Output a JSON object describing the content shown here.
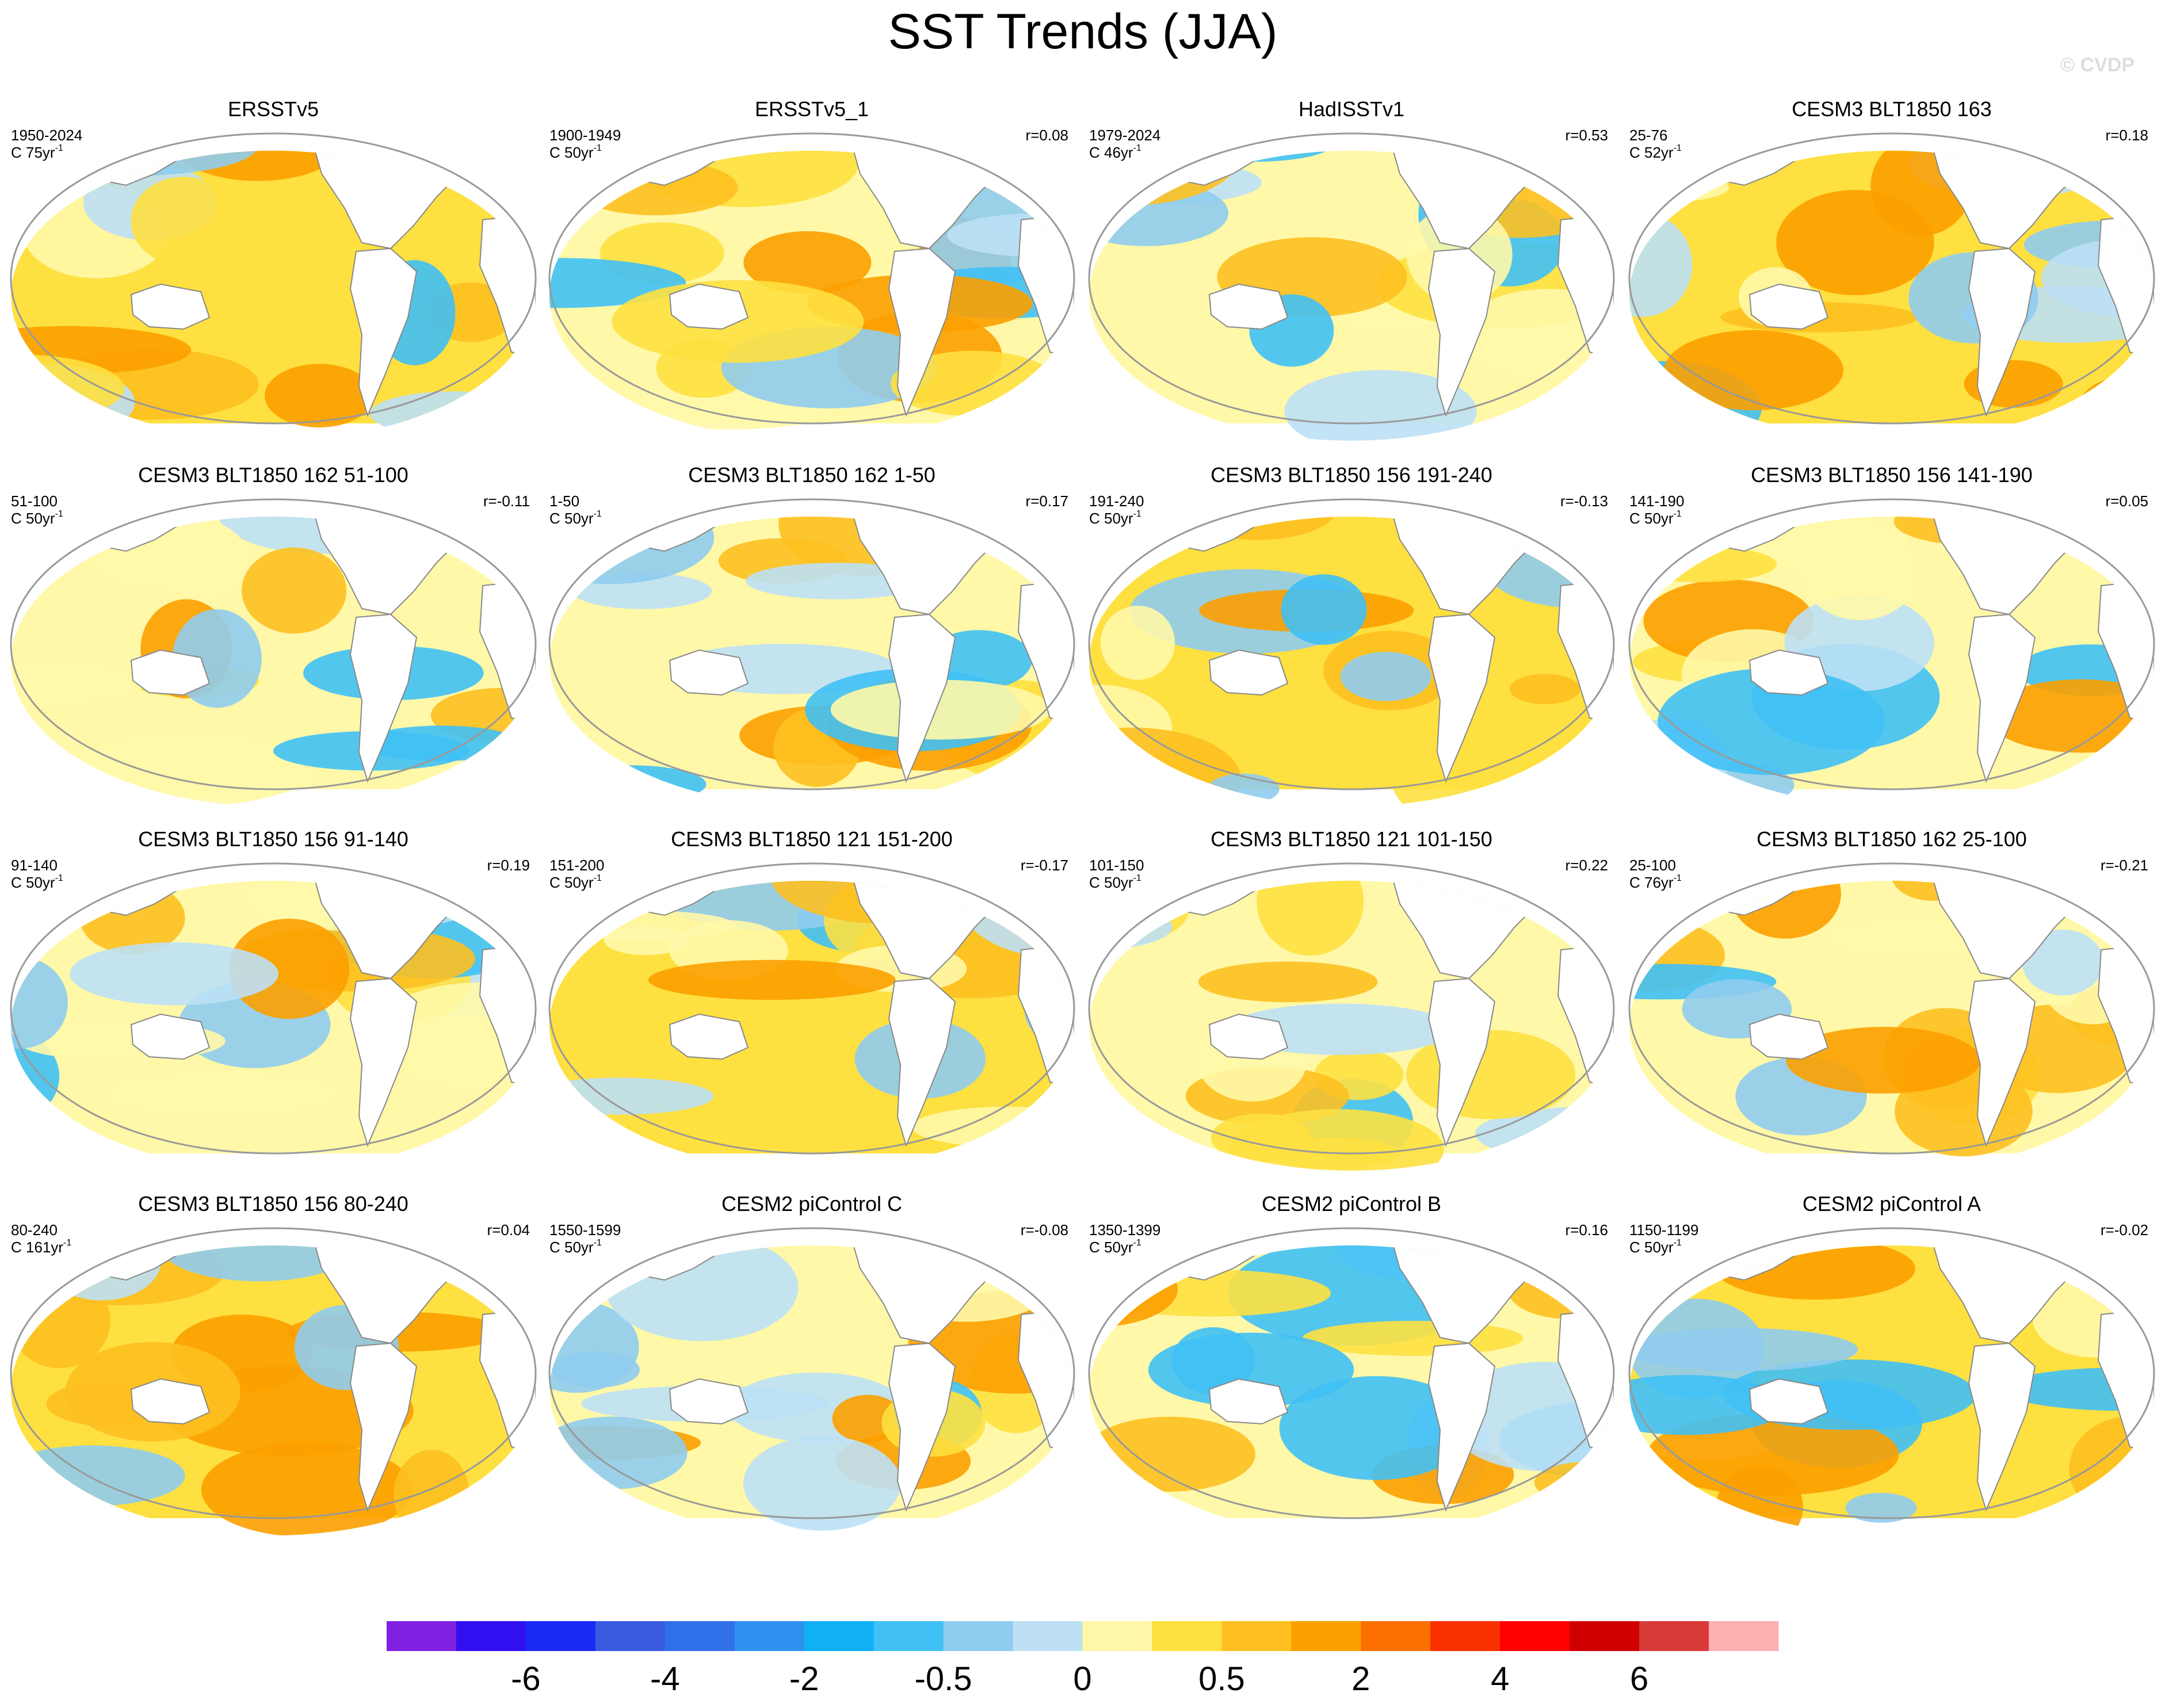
{
  "title": "SST Trends (JJA)",
  "watermark": "© CVDP",
  "panels": [
    {
      "title": "ERSSTv5",
      "period": "1950-2024",
      "trend": "C 75yr",
      "exponent": "-1"
    },
    {
      "title": "ERSSTv5_1",
      "period": "1900-1949",
      "trend": "C 50yr",
      "exponent": "-1",
      "r": "r=0.08"
    },
    {
      "title": "HadISSTv1",
      "period": "1979-2024",
      "trend": "C 46yr",
      "exponent": "-1",
      "r": "r=0.53"
    },
    {
      "title": "CESM3 BLT1850 163",
      "period": "25-76",
      "trend": "C 52yr",
      "exponent": "-1",
      "r": "r=0.18"
    },
    {
      "title": "CESM3 BLT1850 162 51-100",
      "period": "51-100",
      "trend": "C 50yr",
      "exponent": "-1",
      "r": "r=-0.11"
    },
    {
      "title": "CESM3 BLT1850 162 1-50",
      "period": "1-50",
      "trend": "C 50yr",
      "exponent": "-1",
      "r": "r=0.17"
    },
    {
      "title": "CESM3 BLT1850 156 191-240",
      "period": "191-240",
      "trend": "C 50yr",
      "exponent": "-1",
      "r": "r=-0.13"
    },
    {
      "title": "CESM3 BLT1850 156 141-190",
      "period": "141-190",
      "trend": "C 50yr",
      "exponent": "-1",
      "r": "r=0.05"
    },
    {
      "title": "CESM3 BLT1850 156 91-140",
      "period": "91-140",
      "trend": "C 50yr",
      "exponent": "-1",
      "r": "r=0.19"
    },
    {
      "title": "CESM3 BLT1850 121 151-200",
      "period": "151-200",
      "trend": "C 50yr",
      "exponent": "-1",
      "r": "r=-0.17"
    },
    {
      "title": "CESM3 BLT1850 121 101-150",
      "period": "101-150",
      "trend": "C 50yr",
      "exponent": "-1",
      "r": "r=0.22"
    },
    {
      "title": "CESM3 BLT1850 162 25-100",
      "period": "25-100",
      "trend": "C 76yr",
      "exponent": "-1",
      "r": "r=-0.21"
    },
    {
      "title": "CESM3 BLT1850 156 80-240",
      "period": "80-240",
      "trend": "C 161yr",
      "exponent": "-1",
      "r": "r=0.04"
    },
    {
      "title": "CESM2 piControl C",
      "period": "1550-1599",
      "trend": "C 50yr",
      "exponent": "-1",
      "r": "r=-0.08"
    },
    {
      "title": "CESM2 piControl B",
      "period": "1350-1399",
      "trend": "C 50yr",
      "exponent": "-1",
      "r": "r=0.16"
    },
    {
      "title": "CESM2 piControl A",
      "period": "1150-1199",
      "trend": "C 50yr",
      "exponent": "-1",
      "r": "r=-0.02"
    }
  ],
  "colorbar": {
    "colors": [
      "#8020e0",
      "#3010f0",
      "#1a2af5",
      "#3a5ae0",
      "#3070e8",
      "#3090f0",
      "#10b0f5",
      "#40c0f5",
      "#90ccee",
      "#bde0f5",
      "#fff8a8",
      "#fee040",
      "#fdc020",
      "#fca000",
      "#fb7000",
      "#f83000",
      "#ff0000",
      "#d00000",
      "#d83a3a",
      "#ffb0b0"
    ],
    "ticks": [
      -6,
      -4,
      -2,
      -0.5,
      0,
      0.5,
      2,
      4,
      6
    ]
  }
}
